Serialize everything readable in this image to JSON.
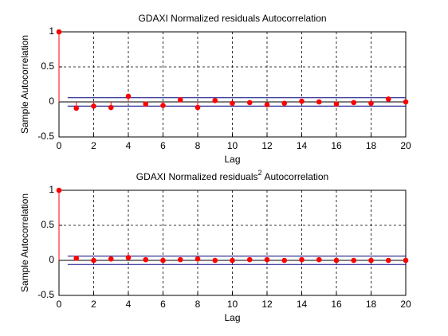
{
  "chart_data": [
    {
      "type": "stem",
      "title": "GDAXI Normalized residuals Autocorrelation",
      "x_label": "Lag",
      "y_label": "Sample Autocorrelation",
      "x": [
        0,
        1,
        2,
        3,
        4,
        5,
        6,
        7,
        8,
        9,
        10,
        11,
        12,
        13,
        14,
        15,
        16,
        17,
        18,
        19,
        20
      ],
      "values": [
        1,
        -0.09,
        -0.06,
        -0.08,
        0.08,
        -0.03,
        -0.05,
        0.03,
        -0.08,
        0.02,
        -0.02,
        -0.01,
        -0.04,
        -0.02,
        0.01,
        0,
        -0.03,
        -0.01,
        -0.02,
        0.04,
        0
      ],
      "color": "#ff0000",
      "bounds": [
        0.06,
        -0.06
      ],
      "bound_color": "#000080",
      "xlim": [
        0,
        20
      ],
      "xticks": [
        0,
        2,
        4,
        6,
        8,
        10,
        12,
        14,
        16,
        18,
        20
      ],
      "ylim": [
        -0.5,
        1
      ],
      "yticks": [
        -0.5,
        0,
        0.5,
        1
      ],
      "grid": true
    },
    {
      "type": "stem",
      "title": [
        "GDAXI Normalized residuals",
        "2",
        "Autocorrelation"
      ],
      "x_label": "Lag",
      "y_label": "Sample Autocorrelation",
      "x": [
        0,
        1,
        2,
        3,
        4,
        5,
        6,
        7,
        8,
        9,
        10,
        11,
        12,
        13,
        14,
        15,
        16,
        17,
        18,
        19,
        20
      ],
      "values": [
        1,
        0.03,
        0,
        0.02,
        0.04,
        0.01,
        0,
        0.01,
        0.02,
        0,
        0,
        0.01,
        0.01,
        0,
        0.01,
        0.01,
        0,
        0,
        0,
        0,
        0
      ],
      "color": "#ff0000",
      "bounds": [
        0.06,
        -0.06
      ],
      "bound_color": "#000080",
      "xlim": [
        0,
        20
      ],
      "xticks": [
        0,
        2,
        4,
        6,
        8,
        10,
        12,
        14,
        16,
        18,
        20
      ],
      "ylim": [
        -0.5,
        1
      ],
      "yticks": [
        -0.5,
        0,
        0.5,
        1
      ],
      "grid": true
    }
  ]
}
